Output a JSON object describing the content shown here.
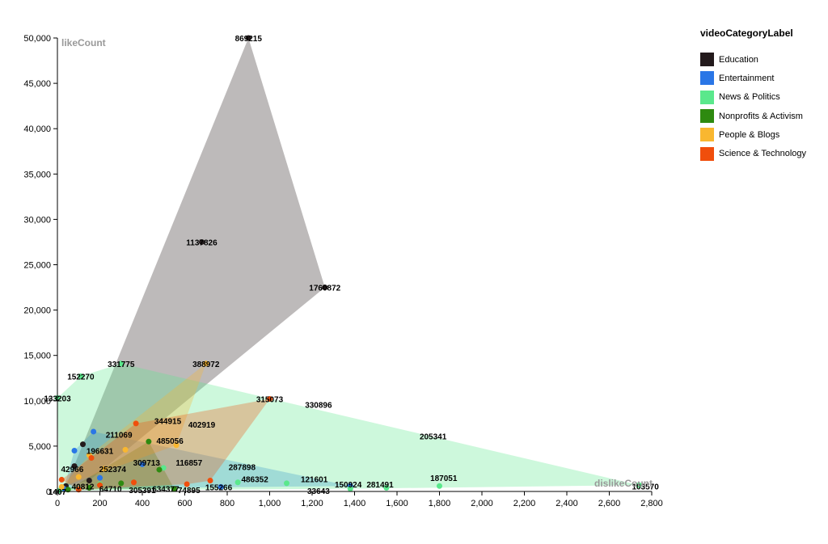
{
  "chart_data": {
    "type": "scatter",
    "xlabel": "dislikeCount",
    "ylabel": "likeCount",
    "xlim": [
      0,
      2800
    ],
    "ylim": [
      0,
      50000
    ],
    "x_ticks": [
      "0",
      "200",
      "400",
      "600",
      "800",
      "1,000",
      "1,200",
      "1,400",
      "1,600",
      "1,800",
      "2,000",
      "2,200",
      "2,400",
      "2,600",
      "2,800"
    ],
    "y_ticks": [
      "0",
      "5,000",
      "10,000",
      "15,000",
      "20,000",
      "25,000",
      "30,000",
      "35,000",
      "40,000",
      "45,000",
      "50,000"
    ],
    "legend_title": "videoCategoryLabel",
    "series": [
      {
        "name": "Education",
        "color": "#231a1c",
        "hull_opacity": 0.3,
        "points": [
          {
            "x": 900,
            "y": 50000
          },
          {
            "x": 680,
            "y": 27500
          },
          {
            "x": 1260,
            "y": 22500
          },
          {
            "x": 80,
            "y": 2800
          },
          {
            "x": 120,
            "y": 5200
          },
          {
            "x": 40,
            "y": 600
          },
          {
            "x": 150,
            "y": 1200
          }
        ]
      },
      {
        "name": "Entertainment",
        "color": "#2a76e6",
        "hull_opacity": 0.3,
        "points": [
          {
            "x": 170,
            "y": 6600
          },
          {
            "x": 770,
            "y": 500
          },
          {
            "x": 1380,
            "y": 600
          },
          {
            "x": 80,
            "y": 4500
          },
          {
            "x": 30,
            "y": 300
          },
          {
            "x": 200,
            "y": 1500
          },
          {
            "x": 400,
            "y": 3000
          }
        ]
      },
      {
        "name": "News & Politics",
        "color": "#5ae88c",
        "hull_opacity": 0.3,
        "points": [
          {
            "x": 300,
            "y": 14100
          },
          {
            "x": 110,
            "y": 12700
          },
          {
            "x": 0,
            "y": 10300
          },
          {
            "x": 2740,
            "y": 700
          },
          {
            "x": 1800,
            "y": 600
          },
          {
            "x": 1380,
            "y": 300
          },
          {
            "x": 1550,
            "y": 400
          },
          {
            "x": 10,
            "y": 100
          },
          {
            "x": 500,
            "y": 2600
          },
          {
            "x": 850,
            "y": 1000
          },
          {
            "x": 1080,
            "y": 900
          },
          {
            "x": 200,
            "y": 800
          }
        ]
      },
      {
        "name": "Nonprofits & Activism",
        "color": "#2e8a10",
        "hull_opacity": 0.3,
        "points": [
          {
            "x": 480,
            "y": 2400
          },
          {
            "x": 300,
            "y": 900
          },
          {
            "x": 150,
            "y": 400
          },
          {
            "x": 550,
            "y": 300
          },
          {
            "x": 50,
            "y": 200
          },
          {
            "x": 430,
            "y": 5500
          }
        ]
      },
      {
        "name": "People & Blogs",
        "color": "#f9b730",
        "hull_opacity": 0.3,
        "points": [
          {
            "x": 700,
            "y": 14100
          },
          {
            "x": 560,
            "y": 5100
          },
          {
            "x": 320,
            "y": 4600
          },
          {
            "x": 220,
            "y": 2500
          },
          {
            "x": 100,
            "y": 1600
          },
          {
            "x": 20,
            "y": 500
          },
          {
            "x": 150,
            "y": 4000
          }
        ]
      },
      {
        "name": "Science & Technology",
        "color": "#f04e0c",
        "hull_opacity": 0.3,
        "points": [
          {
            "x": 1000,
            "y": 10200
          },
          {
            "x": 370,
            "y": 7500
          },
          {
            "x": 720,
            "y": 1200
          },
          {
            "x": 160,
            "y": 3700
          },
          {
            "x": 20,
            "y": 1300
          },
          {
            "x": 610,
            "y": 800
          },
          {
            "x": 360,
            "y": 1000
          },
          {
            "x": 100,
            "y": 200
          },
          {
            "x": 200,
            "y": 700
          }
        ]
      }
    ],
    "labels": [
      {
        "text": "869215",
        "x": 900,
        "y": 50000
      },
      {
        "text": "1137826",
        "x": 680,
        "y": 27500
      },
      {
        "text": "1760872",
        "x": 1260,
        "y": 22500
      },
      {
        "text": "331775",
        "x": 300,
        "y": 14100
      },
      {
        "text": "388972",
        "x": 700,
        "y": 14100
      },
      {
        "text": "152270",
        "x": 110,
        "y": 12700
      },
      {
        "text": "133203",
        "x": 0,
        "y": 10300
      },
      {
        "text": "315073",
        "x": 1000,
        "y": 10200
      },
      {
        "text": "330896",
        "x": 1230,
        "y": 9600
      },
      {
        "text": "344915",
        "x": 520,
        "y": 7800
      },
      {
        "text": "402919",
        "x": 680,
        "y": 7400
      },
      {
        "text": "211069",
        "x": 290,
        "y": 6300
      },
      {
        "text": "205341",
        "x": 1770,
        "y": 6100
      },
      {
        "text": "485056",
        "x": 530,
        "y": 5600
      },
      {
        "text": "196631",
        "x": 200,
        "y": 4500
      },
      {
        "text": "309713",
        "x": 420,
        "y": 3200
      },
      {
        "text": "116857",
        "x": 620,
        "y": 3200
      },
      {
        "text": "42966",
        "x": 70,
        "y": 2500
      },
      {
        "text": "252374",
        "x": 260,
        "y": 2500
      },
      {
        "text": "287898",
        "x": 870,
        "y": 2700
      },
      {
        "text": "486352",
        "x": 930,
        "y": 1400
      },
      {
        "text": "121601",
        "x": 1210,
        "y": 1400
      },
      {
        "text": "187051",
        "x": 1820,
        "y": 1500
      },
      {
        "text": "40812",
        "x": 120,
        "y": 600
      },
      {
        "text": "150924",
        "x": 1370,
        "y": 800
      },
      {
        "text": "281491",
        "x": 1520,
        "y": 800
      },
      {
        "text": "64710",
        "x": 250,
        "y": 300
      },
      {
        "text": "305391",
        "x": 400,
        "y": 200
      },
      {
        "text": "634377",
        "x": 510,
        "y": 300
      },
      {
        "text": "74895",
        "x": 620,
        "y": 200
      },
      {
        "text": "155266",
        "x": 760,
        "y": 500
      },
      {
        "text": "33643",
        "x": 1230,
        "y": 100
      },
      {
        "text": "1407",
        "x": 0,
        "y": 0
      },
      {
        "text": "103570",
        "x": 2770,
        "y": 600
      }
    ]
  }
}
